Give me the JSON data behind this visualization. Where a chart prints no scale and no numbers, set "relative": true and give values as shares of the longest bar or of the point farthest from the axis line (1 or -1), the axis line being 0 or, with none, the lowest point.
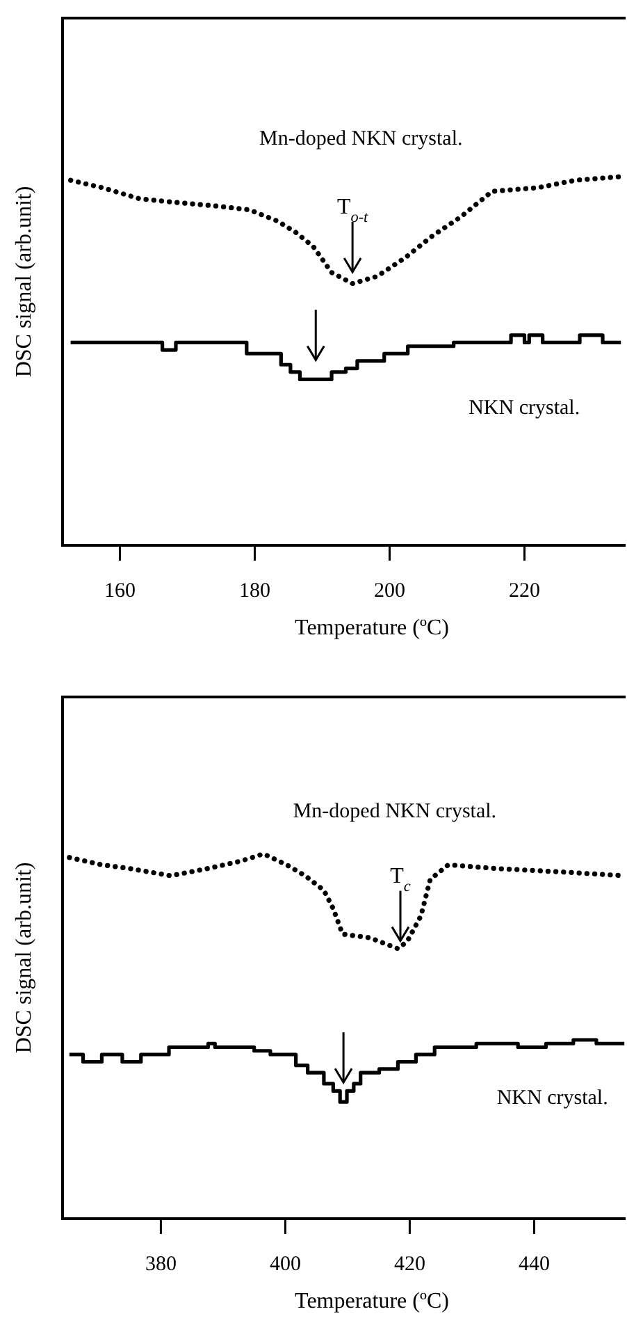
{
  "chart_data": [
    {
      "type": "line",
      "relative": true,
      "xlabel": "Temperature (ºC)",
      "ylabel": "DSC signal (arb.unit)",
      "xlim": [
        151.5,
        235
      ],
      "xticks": [
        160,
        180,
        200,
        220
      ],
      "marker": "none",
      "grid": false,
      "legend": false,
      "series": [
        {
          "name": "Mn-doped NKN crystal.",
          "color": "#000000",
          "line_style": "dotted",
          "x": [
            152.7,
            157.4,
            162.9,
            168.3,
            174.4,
            179.2,
            183.3,
            186,
            188.7,
            191.4,
            194.5,
            198.2,
            202.3,
            206.4,
            210.5,
            215.2,
            222,
            227.5,
            234.3
          ],
          "values": [
            0.99,
            0.97,
            0.94,
            0.93,
            0.92,
            0.91,
            0.88,
            0.85,
            0.81,
            0.74,
            0.71,
            0.73,
            0.78,
            0.84,
            0.89,
            0.96,
            0.97,
            0.99,
            1
          ]
        },
        {
          "name": "NKN crystal.",
          "color": "#000000",
          "type": "step",
          "line_style": "solid",
          "x": [
            152.7,
            166.3,
            168.3,
            178.8,
            183.9,
            185.3,
            186.7,
            191.4,
            193.5,
            195.2,
            199.2,
            202.7,
            209.5,
            218,
            220,
            220.7,
            222.7,
            228.2,
            231.6,
            234.3
          ],
          "values": [
            0.55,
            0.53,
            0.55,
            0.52,
            0.49,
            0.47,
            0.45,
            0.47,
            0.48,
            0.5,
            0.52,
            0.54,
            0.55,
            0.57,
            0.55,
            0.57,
            0.55,
            0.57,
            0.55,
            0.55
          ]
        }
      ],
      "annotations": [
        {
          "text": "T$_{o-t}$",
          "x": 194.5,
          "y": 0.73
        }
      ]
    },
    {
      "type": "line",
      "relative": true,
      "xlabel": "Temperature (ºC)",
      "ylabel": "DSC signal (arb.unit)",
      "xlim": [
        364.2,
        454.7
      ],
      "xticks": [
        380,
        400,
        420,
        440
      ],
      "marker": "none",
      "grid": false,
      "legend": false,
      "series": [
        {
          "name": "Mn-doped NKN crystal.",
          "color": "#000000",
          "line_style": "dotted",
          "x": [
            365.3,
            370.5,
            374.9,
            381.6,
            387.6,
            392.8,
            396.5,
            400.2,
            403.2,
            406.2,
            407.7,
            409.2,
            413.6,
            418.1,
            419.6,
            421.8,
            423.3,
            426.2,
            433.7,
            444.8,
            454.5
          ],
          "values": [
            0.99,
            0.97,
            0.96,
            0.94,
            0.96,
            0.98,
            1,
            0.97,
            0.94,
            0.9,
            0.85,
            0.78,
            0.77,
            0.74,
            0.76,
            0.83,
            0.93,
            0.97,
            0.96,
            0.95,
            0.94
          ]
        },
        {
          "name": "NKN crystal.",
          "color": "#000000",
          "type": "step",
          "line_style": "solid",
          "x": [
            365.3,
            367.5,
            370.5,
            373.8,
            376.8,
            381.3,
            387.6,
            388.7,
            395,
            397.6,
            401.7,
            403.6,
            406.2,
            407.7,
            408.8,
            409.9,
            411,
            412.1,
            415.1,
            418.1,
            421,
            424,
            430.7,
            437.4,
            441.9,
            446.3,
            450,
            454.5
          ],
          "values": [
            0.45,
            0.43,
            0.45,
            0.43,
            0.45,
            0.47,
            0.48,
            0.47,
            0.46,
            0.45,
            0.42,
            0.4,
            0.37,
            0.35,
            0.32,
            0.35,
            0.37,
            0.4,
            0.41,
            0.43,
            0.45,
            0.47,
            0.48,
            0.47,
            0.48,
            0.49,
            0.48,
            0.48
          ]
        }
      ],
      "annotations": [
        {
          "text": "T$_{c}$",
          "x": 418.5,
          "y": 0.75
        }
      ]
    }
  ]
}
